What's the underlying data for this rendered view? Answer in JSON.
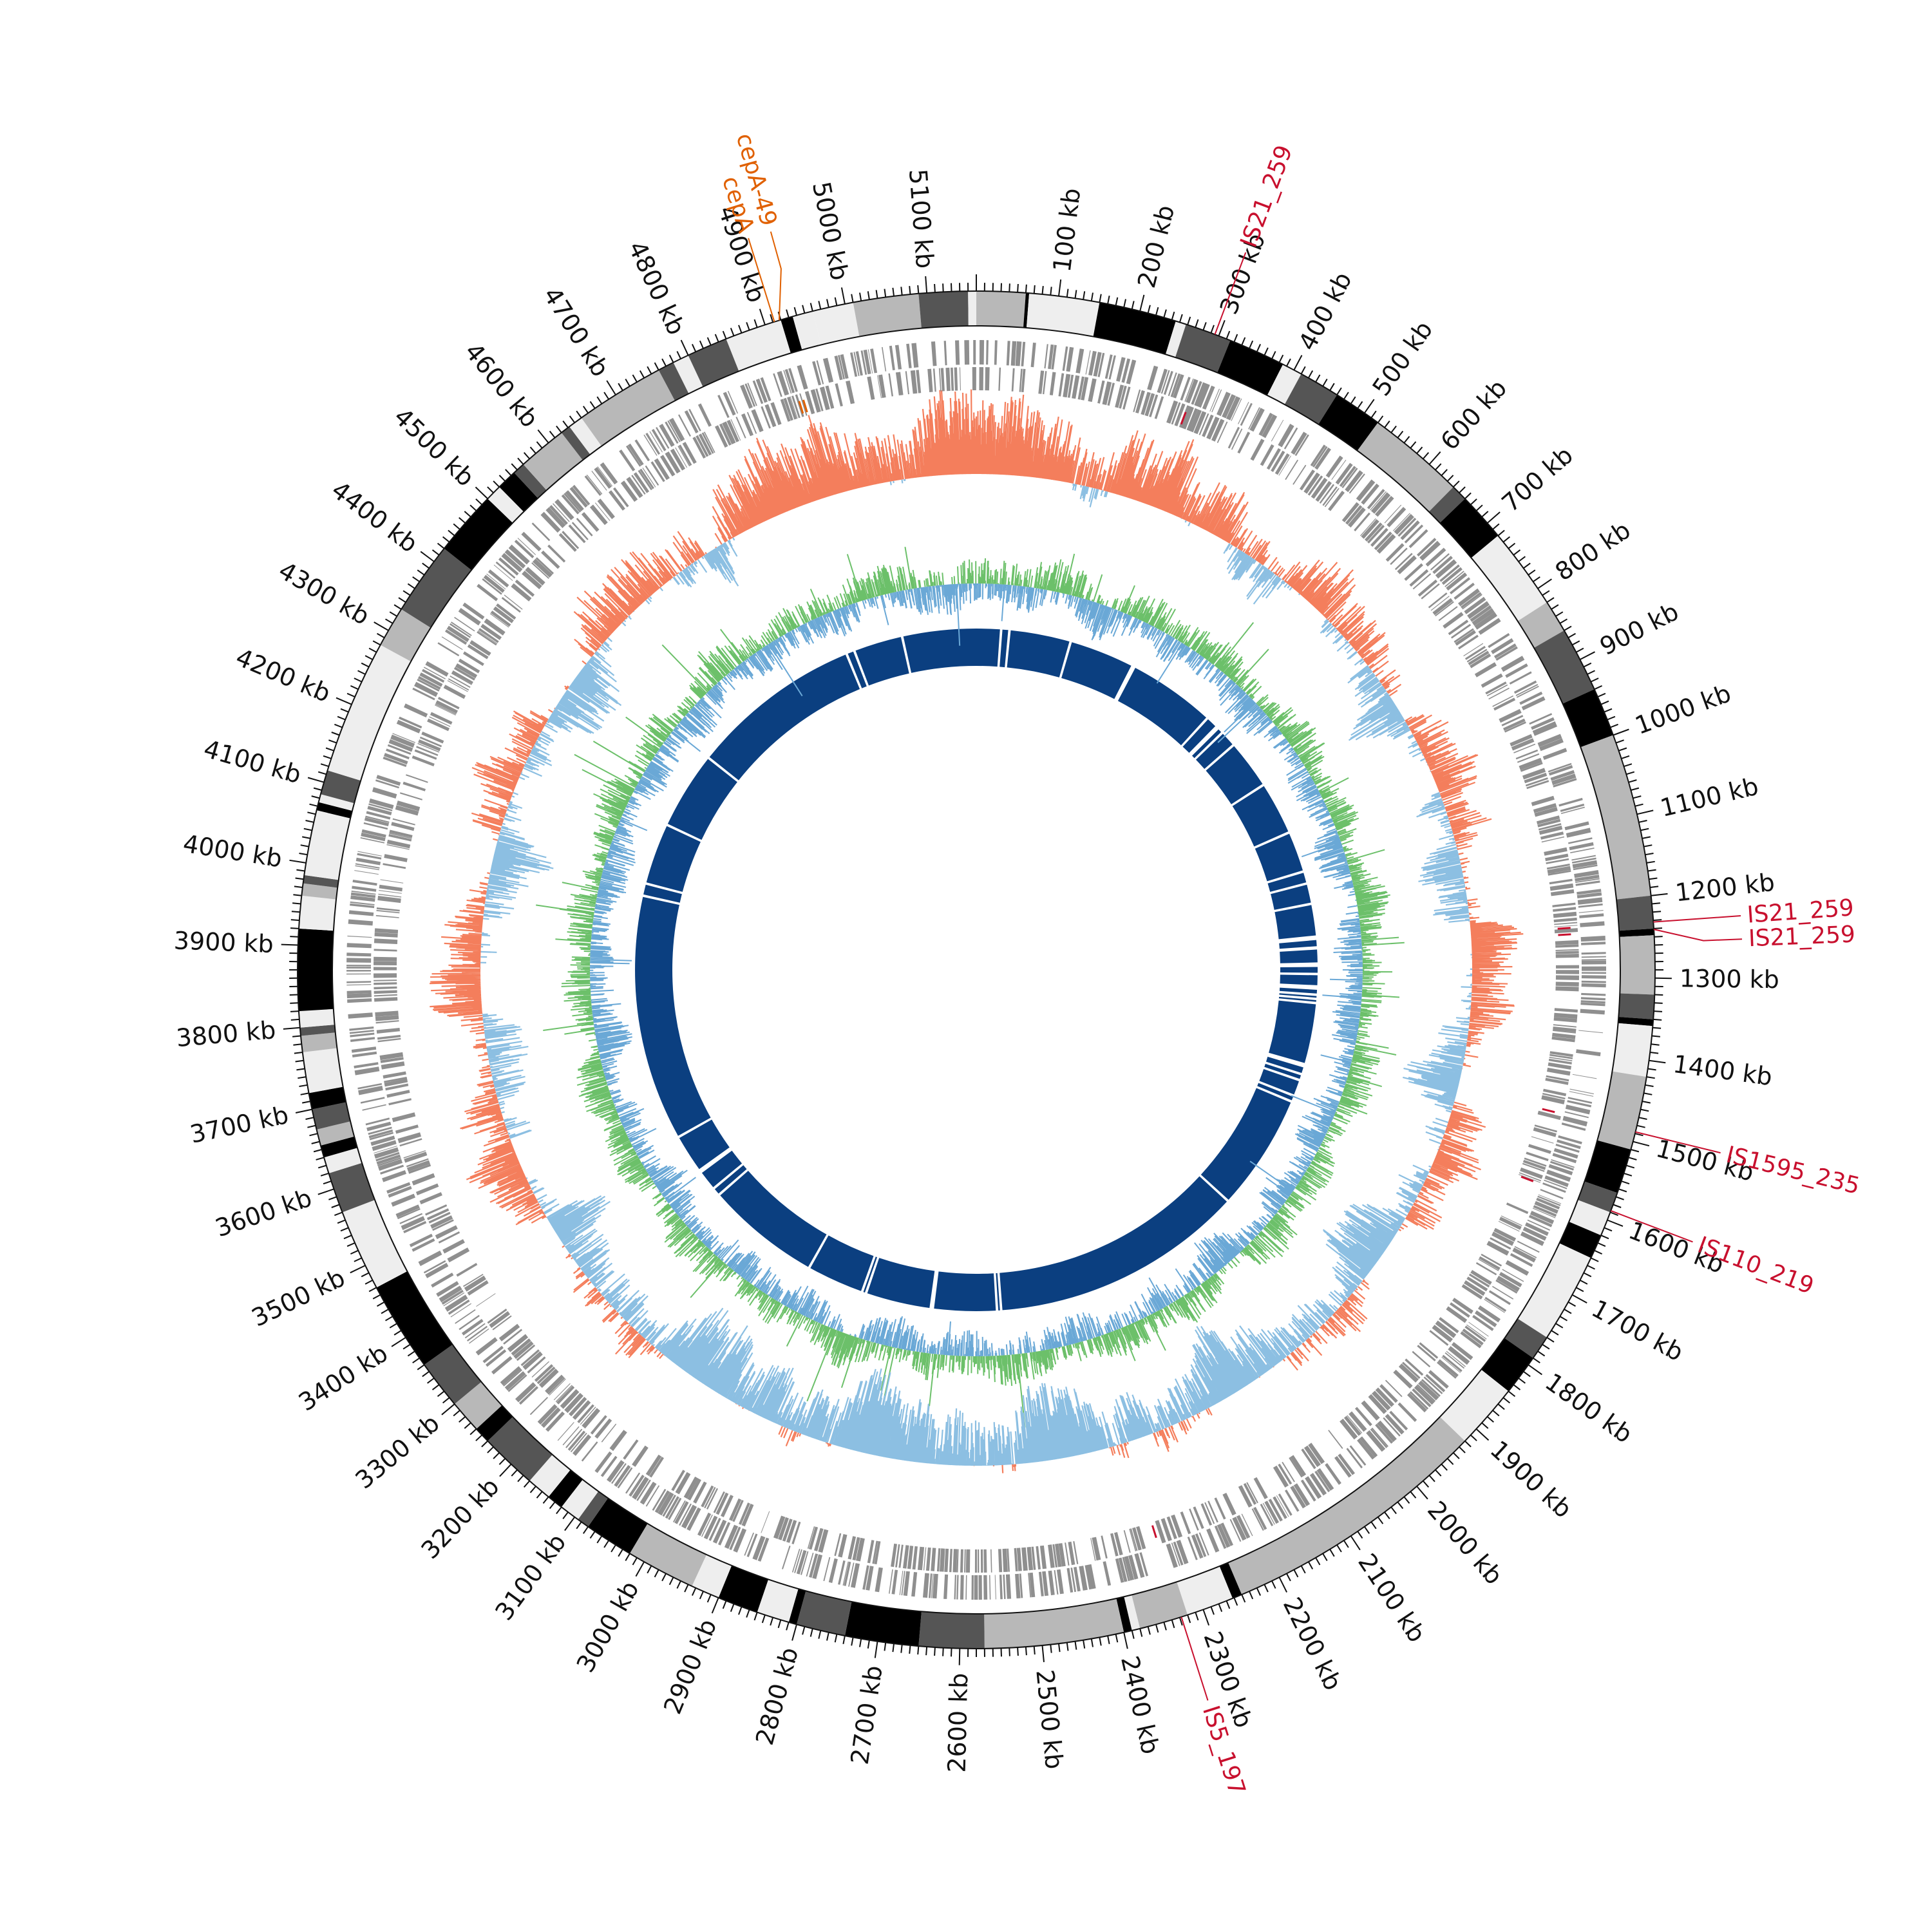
{
  "genome": {
    "length_kb": 5160,
    "unit": " kb"
  },
  "colors": {
    "background": "#ffffff",
    "ink": "#111111",
    "is_element": "#c8102e",
    "cep": "#e06000",
    "gene_track": "#8f8f8f",
    "gc_skew_pos": "#f47e5c",
    "gc_skew_neg": "#8cbfe2",
    "gc_content_pos": "#6cc06a",
    "gc_content_neg": "#6aa8d6",
    "homology": "#0b3f80",
    "ideogram_shades": [
      "#000000",
      "#555555",
      "#b8b8b8",
      "#eeeeee"
    ]
  },
  "scale": {
    "major_tick_kb": 100,
    "minor_tick_kb": 10,
    "tick_labels": [
      "100 kb",
      "200 kb",
      "300 kb",
      "400 kb",
      "500 kb",
      "600 kb",
      "700 kb",
      "800 kb",
      "900 kb",
      "1000 kb",
      "1100 kb",
      "1200 kb",
      "1300 kb",
      "1400 kb",
      "1500 kb",
      "1600 kb",
      "1700 kb",
      "1800 kb",
      "1900 kb",
      "2000 kb",
      "2100 kb",
      "2200 kb",
      "2300 kb",
      "2400 kb",
      "2500 kb",
      "2600 kb",
      "2700 kb",
      "2800 kb",
      "2900 kb",
      "3000 kb",
      "3100 kb",
      "3200 kb",
      "3300 kb",
      "3400 kb",
      "3500 kb",
      "3600 kb",
      "3700 kb",
      "3800 kb",
      "3900 kb",
      "4000 kb",
      "4100 kb",
      "4200 kb",
      "4300 kb",
      "4400 kb",
      "4500 kb",
      "4600 kb",
      "4700 kb",
      "4800 kb",
      "4900 kb",
      "5000 kb",
      "5100 kb"
    ]
  },
  "ideogram_bands": [
    {
      "start": 0,
      "end": 60,
      "shade": 2
    },
    {
      "start": 60,
      "end": 64,
      "shade": 0
    },
    {
      "start": 64,
      "end": 150,
      "shade": 3
    },
    {
      "start": 150,
      "end": 245,
      "shade": 0
    },
    {
      "start": 245,
      "end": 258,
      "shade": 3
    },
    {
      "start": 258,
      "end": 315,
      "shade": 1
    },
    {
      "start": 315,
      "end": 385,
      "shade": 0
    },
    {
      "start": 385,
      "end": 410,
      "shade": 3
    },
    {
      "start": 410,
      "end": 460,
      "shade": 1
    },
    {
      "start": 460,
      "end": 520,
      "shade": 0
    },
    {
      "start": 520,
      "end": 640,
      "shade": 2
    },
    {
      "start": 640,
      "end": 660,
      "shade": 1
    },
    {
      "start": 660,
      "end": 720,
      "shade": 0
    },
    {
      "start": 720,
      "end": 820,
      "shade": 3
    },
    {
      "start": 820,
      "end": 860,
      "shade": 2
    },
    {
      "start": 860,
      "end": 940,
      "shade": 1
    },
    {
      "start": 940,
      "end": 1000,
      "shade": 0
    },
    {
      "start": 1000,
      "end": 1200,
      "shade": 2
    },
    {
      "start": 1200,
      "end": 1240,
      "shade": 1
    },
    {
      "start": 1240,
      "end": 1248,
      "shade": 0
    },
    {
      "start": 1248,
      "end": 1320,
      "shade": 2
    },
    {
      "start": 1320,
      "end": 1350,
      "shade": 1
    },
    {
      "start": 1350,
      "end": 1358,
      "shade": 0
    },
    {
      "start": 1358,
      "end": 1420,
      "shade": 3
    },
    {
      "start": 1420,
      "end": 1510,
      "shade": 2
    },
    {
      "start": 1510,
      "end": 1565,
      "shade": 0
    },
    {
      "start": 1565,
      "end": 1590,
      "shade": 1
    },
    {
      "start": 1590,
      "end": 1620,
      "shade": 3
    },
    {
      "start": 1620,
      "end": 1650,
      "shade": 0
    },
    {
      "start": 1650,
      "end": 1760,
      "shade": 3
    },
    {
      "start": 1760,
      "end": 1790,
      "shade": 1
    },
    {
      "start": 1790,
      "end": 1840,
      "shade": 0
    },
    {
      "start": 1840,
      "end": 1920,
      "shade": 3
    },
    {
      "start": 1920,
      "end": 2250,
      "shade": 2
    },
    {
      "start": 2250,
      "end": 2262,
      "shade": 0
    },
    {
      "start": 2262,
      "end": 2320,
      "shade": 3
    },
    {
      "start": 2320,
      "end": 2380,
      "shade": 2
    },
    {
      "start": 2380,
      "end": 2390,
      "shade": 3
    },
    {
      "start": 2390,
      "end": 2400,
      "shade": 0
    },
    {
      "start": 2400,
      "end": 2570,
      "shade": 2
    },
    {
      "start": 2570,
      "end": 2650,
      "shade": 1
    },
    {
      "start": 2650,
      "end": 2740,
      "shade": 0
    },
    {
      "start": 2740,
      "end": 2800,
      "shade": 1
    },
    {
      "start": 2800,
      "end": 2810,
      "shade": 0
    },
    {
      "start": 2810,
      "end": 2850,
      "shade": 3
    },
    {
      "start": 2850,
      "end": 2900,
      "shade": 0
    },
    {
      "start": 2900,
      "end": 2935,
      "shade": 3
    },
    {
      "start": 2935,
      "end": 3020,
      "shade": 2
    },
    {
      "start": 3020,
      "end": 3080,
      "shade": 0
    },
    {
      "start": 3080,
      "end": 3095,
      "shade": 1
    },
    {
      "start": 3095,
      "end": 3120,
      "shade": 3
    },
    {
      "start": 3120,
      "end": 3140,
      "shade": 0
    },
    {
      "start": 3140,
      "end": 3170,
      "shade": 3
    },
    {
      "start": 3170,
      "end": 3240,
      "shade": 1
    },
    {
      "start": 3240,
      "end": 3260,
      "shade": 0
    },
    {
      "start": 3260,
      "end": 3300,
      "shade": 2
    },
    {
      "start": 3300,
      "end": 3360,
      "shade": 1
    },
    {
      "start": 3360,
      "end": 3470,
      "shade": 0
    },
    {
      "start": 3470,
      "end": 3570,
      "shade": 3
    },
    {
      "start": 3570,
      "end": 3620,
      "shade": 1
    },
    {
      "start": 3620,
      "end": 3640,
      "shade": 3
    },
    {
      "start": 3640,
      "end": 3655,
      "shade": 0
    },
    {
      "start": 3655,
      "end": 3675,
      "shade": 2
    },
    {
      "start": 3675,
      "end": 3700,
      "shade": 1
    },
    {
      "start": 3700,
      "end": 3720,
      "shade": 0
    },
    {
      "start": 3720,
      "end": 3770,
      "shade": 3
    },
    {
      "start": 3770,
      "end": 3790,
      "shade": 2
    },
    {
      "start": 3790,
      "end": 3800,
      "shade": 1
    },
    {
      "start": 3800,
      "end": 3820,
      "shade": 3
    },
    {
      "start": 3820,
      "end": 3920,
      "shade": 0
    },
    {
      "start": 3920,
      "end": 3960,
      "shade": 3
    },
    {
      "start": 3960,
      "end": 3975,
      "shade": 2
    },
    {
      "start": 3975,
      "end": 3985,
      "shade": 1
    },
    {
      "start": 3985,
      "end": 4065,
      "shade": 3
    },
    {
      "start": 4065,
      "end": 4075,
      "shade": 0
    },
    {
      "start": 4075,
      "end": 4085,
      "shade": 3
    },
    {
      "start": 4085,
      "end": 4115,
      "shade": 1
    },
    {
      "start": 4115,
      "end": 4280,
      "shade": 3
    },
    {
      "start": 4280,
      "end": 4330,
      "shade": 2
    },
    {
      "start": 4330,
      "end": 4420,
      "shade": 1
    },
    {
      "start": 4420,
      "end": 4500,
      "shade": 0
    },
    {
      "start": 4500,
      "end": 4520,
      "shade": 3
    },
    {
      "start": 4520,
      "end": 4545,
      "shade": 0
    },
    {
      "start": 4545,
      "end": 4560,
      "shade": 1
    },
    {
      "start": 4560,
      "end": 4620,
      "shade": 2
    },
    {
      "start": 4620,
      "end": 4632,
      "shade": 1
    },
    {
      "start": 4632,
      "end": 4650,
      "shade": 3
    },
    {
      "start": 4650,
      "end": 4760,
      "shade": 2
    },
    {
      "start": 4760,
      "end": 4780,
      "shade": 1
    },
    {
      "start": 4780,
      "end": 4800,
      "shade": 3
    },
    {
      "start": 4800,
      "end": 4850,
      "shade": 1
    },
    {
      "start": 4850,
      "end": 4920,
      "shade": 3
    },
    {
      "start": 4920,
      "end": 4935,
      "shade": 0
    },
    {
      "start": 4935,
      "end": 4960,
      "shade": 3
    },
    {
      "start": 4960,
      "end": 5010,
      "shade": 3
    },
    {
      "start": 5010,
      "end": 5090,
      "shade": 2
    },
    {
      "start": 5090,
      "end": 5150,
      "shade": 1
    },
    {
      "start": 5150,
      "end": 5160,
      "shade": 3
    }
  ],
  "homology_gaps_kb": [
    60,
    80,
    230,
    390,
    395,
    610,
    640,
    645,
    660,
    700,
    820,
    950,
    1050,
    1080,
    1130,
    1210,
    1215,
    1236,
    1238,
    1275,
    1280,
    1300,
    1330,
    1335,
    1350,
    1360,
    1370,
    1520,
    1525,
    1545,
    1560,
    1600,
    1615,
    1900,
    2520,
    2530,
    2685,
    2690,
    2850,
    2860,
    3000,
    3280,
    3300,
    3350,
    3355,
    3450,
    4050,
    4080,
    4230,
    4420,
    4840,
    4860,
    4980
  ],
  "annotations": [
    {
      "label": "IS21_259",
      "position_kb": 295,
      "group": "is"
    },
    {
      "label": "IS21_259",
      "position_kb": 1232,
      "group": "is"
    },
    {
      "label": "IS21_259",
      "position_kb": 1241,
      "group": "is"
    },
    {
      "label": "IS1595_235",
      "position_kb": 1488,
      "group": "is"
    },
    {
      "label": "IS110_219",
      "position_kb": 1588,
      "group": "is"
    },
    {
      "label": "IS5_197",
      "position_kb": 2328,
      "group": "is"
    },
    {
      "label": "cepA",
      "position_kb": 4912,
      "group": "cep"
    },
    {
      "label": "cepA-49",
      "position_kb": 4918,
      "group": "cep"
    }
  ]
}
